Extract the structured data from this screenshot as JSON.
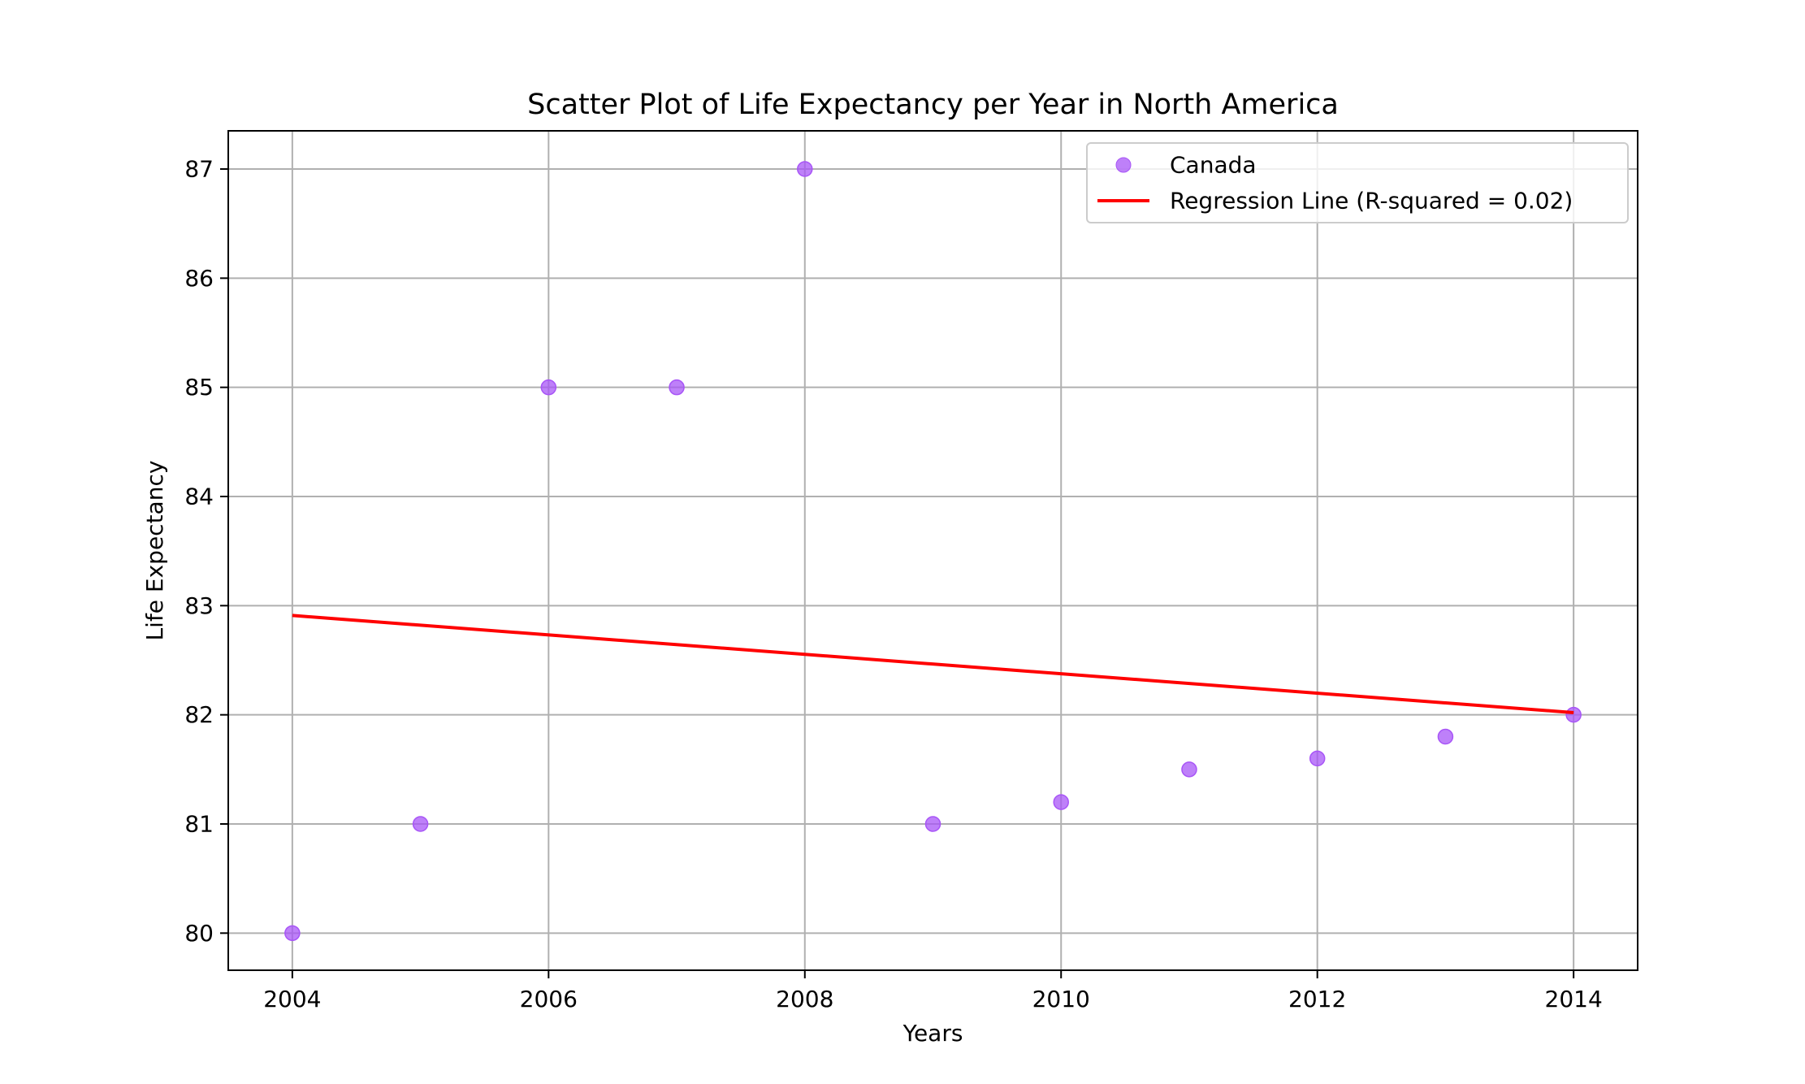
{
  "chart_data": {
    "type": "scatter",
    "title": "Scatter Plot of Life Expectancy per Year in North America",
    "xlabel": "Years",
    "ylabel": "Life Expectancy",
    "xlim": [
      2003.5,
      2014.5
    ],
    "ylim": [
      79.66,
      87.35
    ],
    "xticks": [
      2004,
      2006,
      2008,
      2010,
      2012,
      2014
    ],
    "yticks": [
      80,
      81,
      82,
      83,
      84,
      85,
      86,
      87
    ],
    "grid": true,
    "legend_position": "upper right",
    "series": [
      {
        "name": "Canada",
        "kind": "scatter",
        "color": "#a855f7",
        "points": [
          {
            "x": 2004,
            "y": 80.0
          },
          {
            "x": 2005,
            "y": 81.0
          },
          {
            "x": 2006,
            "y": 85.0
          },
          {
            "x": 2007,
            "y": 85.0
          },
          {
            "x": 2008,
            "y": 87.0
          },
          {
            "x": 2009,
            "y": 81.0
          },
          {
            "x": 2010,
            "y": 81.2
          },
          {
            "x": 2011,
            "y": 81.5
          },
          {
            "x": 2012,
            "y": 81.6
          },
          {
            "x": 2013,
            "y": 81.8
          },
          {
            "x": 2014,
            "y": 82.0
          }
        ]
      },
      {
        "name": "Regression Line (R-squared = 0.02)",
        "kind": "line",
        "color": "#ff0000",
        "points": [
          {
            "x": 2004,
            "y": 82.91
          },
          {
            "x": 2014,
            "y": 82.02
          }
        ]
      }
    ]
  }
}
